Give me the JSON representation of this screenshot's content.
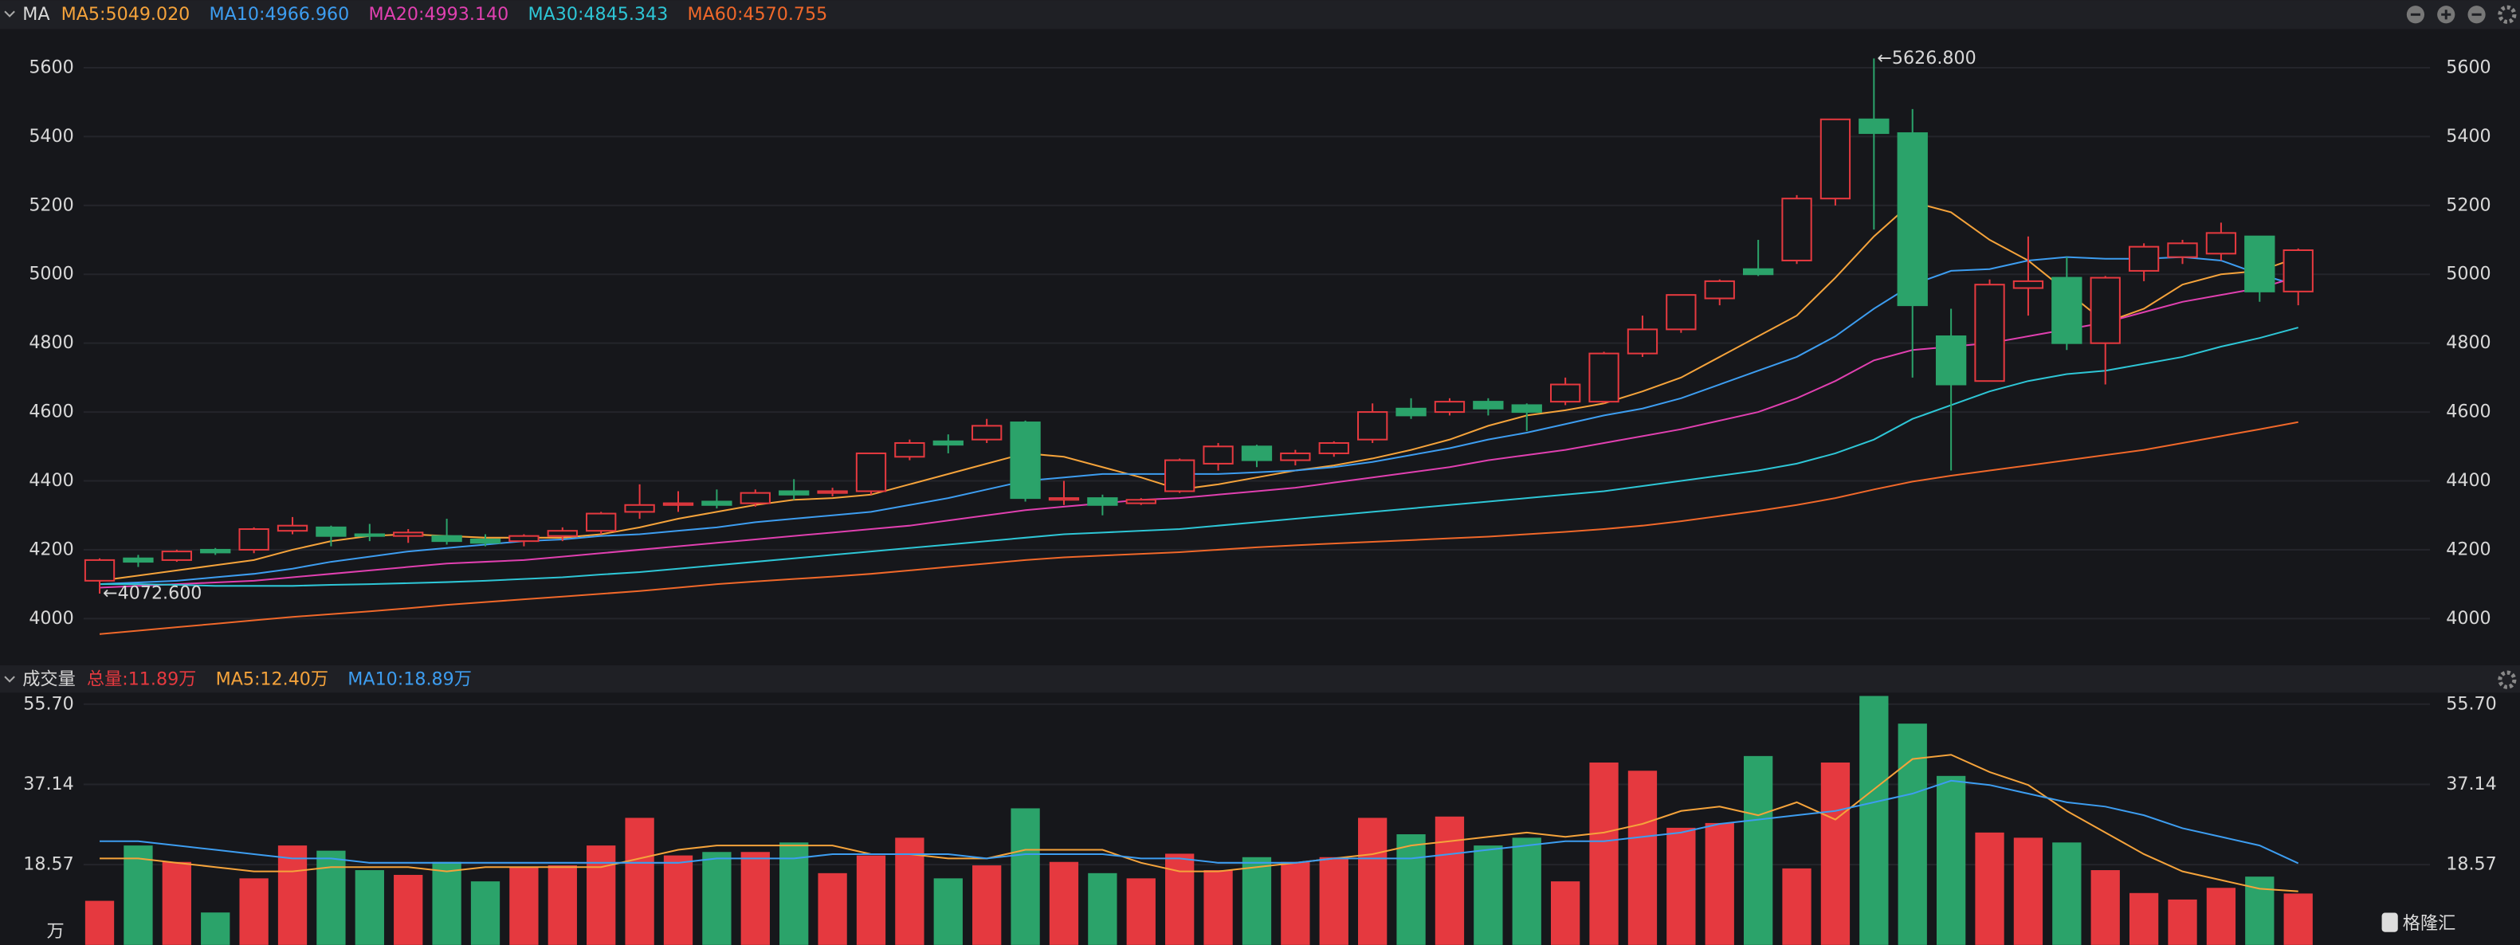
{
  "chart_data": [
    {
      "type": "candlestick",
      "title": "MA",
      "ylim": [
        3883,
        5703
      ],
      "yticks": [
        4000,
        4200,
        4400,
        4600,
        4800,
        5000,
        5200,
        5400,
        5600
      ],
      "grid": true,
      "up_color": "#e5393f",
      "down_color": "#2ba36a",
      "open": [
        4110,
        4175,
        4170,
        4200,
        4200,
        4255,
        4265,
        4245,
        4240,
        4240,
        4230,
        4225,
        4240,
        4255,
        4310,
        4330,
        4340,
        4335,
        4370,
        4365,
        4370,
        4470,
        4515,
        4520,
        4570,
        4345,
        4350,
        4335,
        4370,
        4450,
        4500,
        4460,
        4480,
        4520,
        4610,
        4600,
        4630,
        4620,
        4630,
        4630,
        4770,
        4840,
        4930,
        5015,
        5040,
        5220,
        5450,
        5410,
        4820,
        4690,
        4960,
        4990,
        4800,
        5010,
        5050,
        5060,
        5110,
        4950
      ],
      "high": [
        4175,
        4185,
        4200,
        4205,
        4265,
        4295,
        4270,
        4275,
        4260,
        4290,
        4245,
        4245,
        4265,
        4310,
        4390,
        4370,
        4375,
        4375,
        4405,
        4380,
        4480,
        4520,
        4535,
        4580,
        4575,
        4400,
        4360,
        4350,
        4465,
        4510,
        4505,
        4490,
        4515,
        4625,
        4640,
        4640,
        4640,
        4625,
        4700,
        4775,
        4880,
        4940,
        4985,
        5100,
        5230,
        5450,
        5626.8,
        5480,
        4900,
        4985,
        5110,
        5050,
        4995,
        5090,
        5100,
        5150,
        5110,
        5075
      ],
      "low": [
        4072.6,
        4150,
        4165,
        4185,
        4190,
        4245,
        4210,
        4225,
        4220,
        4215,
        4210,
        4210,
        4225,
        4245,
        4290,
        4310,
        4320,
        4325,
        4345,
        4355,
        4360,
        4460,
        4480,
        4510,
        4340,
        4330,
        4300,
        4330,
        4365,
        4430,
        4440,
        4445,
        4470,
        4510,
        4580,
        4590,
        4590,
        4545,
        4620,
        4625,
        4760,
        4830,
        4910,
        4995,
        5030,
        5200,
        5130,
        4700,
        4430,
        4690,
        4880,
        4780,
        4680,
        4980,
        5030,
        5040,
        4920,
        4910
      ],
      "close": [
        4170,
        4165,
        4195,
        4192,
        4260,
        4270,
        4240,
        4240,
        4250,
        4225,
        4220,
        4240,
        4255,
        4305,
        4330,
        4335,
        4330,
        4365,
        4360,
        4370,
        4480,
        4510,
        4505,
        4560,
        4350,
        4350,
        4330,
        4345,
        4460,
        4500,
        4460,
        4480,
        4510,
        4600,
        4590,
        4630,
        4610,
        4600,
        4680,
        4770,
        4840,
        4940,
        4980,
        5000,
        5220,
        5450,
        5410,
        4910,
        4680,
        4970,
        4980,
        4800,
        4990,
        5080,
        5090,
        5120,
        4950,
        5070
      ],
      "annotations": [
        {
          "text": "←5626.800",
          "value": 5626.8
        },
        {
          "text": "←4072.600",
          "value": 4072.6
        }
      ],
      "series": [
        {
          "name": "MA5:5049.020",
          "color": "#f5a33b",
          "values": [
            4110,
            4125,
            4140,
            4155,
            4170,
            4200,
            4225,
            4240,
            4245,
            4240,
            4235,
            4235,
            4235,
            4245,
            4265,
            4290,
            4310,
            4330,
            4345,
            4350,
            4360,
            4390,
            4420,
            4450,
            4480,
            4470,
            4440,
            4410,
            4375,
            4390,
            4410,
            4430,
            4445,
            4465,
            4490,
            4520,
            4560,
            4590,
            4605,
            4625,
            4660,
            4700,
            4760,
            4820,
            4880,
            4990,
            5110,
            5210,
            5180,
            5100,
            5040,
            4950,
            4860,
            4900,
            4970,
            5000,
            5010,
            5049.02
          ]
        },
        {
          "name": "MA10:4966.960",
          "color": "#3d9df0",
          "values": [
            4100,
            4105,
            4110,
            4120,
            4130,
            4145,
            4165,
            4180,
            4195,
            4205,
            4215,
            4225,
            4230,
            4240,
            4245,
            4255,
            4265,
            4280,
            4290,
            4300,
            4310,
            4330,
            4350,
            4375,
            4400,
            4410,
            4420,
            4420,
            4420,
            4420,
            4425,
            4430,
            4440,
            4455,
            4475,
            4495,
            4520,
            4540,
            4565,
            4590,
            4610,
            4640,
            4680,
            4720,
            4760,
            4820,
            4900,
            4970,
            5010,
            5015,
            5040,
            5050,
            5045,
            5045,
            5050,
            5040,
            5000,
            4966.96
          ]
        },
        {
          "name": "MA20:4993.140",
          "color": "#e040b0",
          "values": [
            4090,
            4095,
            4100,
            4105,
            4110,
            4120,
            4130,
            4140,
            4150,
            4160,
            4165,
            4170,
            4180,
            4190,
            4200,
            4210,
            4220,
            4230,
            4240,
            4250,
            4260,
            4270,
            4285,
            4300,
            4315,
            4325,
            4335,
            4345,
            4350,
            4360,
            4370,
            4380,
            4395,
            4410,
            4425,
            4440,
            4460,
            4475,
            4490,
            4510,
            4530,
            4550,
            4575,
            4600,
            4640,
            4690,
            4750,
            4780,
            4790,
            4800,
            4820,
            4840,
            4860,
            4890,
            4920,
            4940,
            4960,
            4993.14
          ]
        },
        {
          "name": "MA30:4845.343",
          "color": "#2ec6d6",
          "values": [
            4100,
            4100,
            4098,
            4095,
            4095,
            4095,
            4098,
            4100,
            4103,
            4106,
            4110,
            4115,
            4120,
            4128,
            4135,
            4145,
            4155,
            4165,
            4175,
            4185,
            4195,
            4205,
            4215,
            4225,
            4235,
            4245,
            4250,
            4255,
            4260,
            4270,
            4280,
            4290,
            4300,
            4310,
            4320,
            4330,
            4340,
            4350,
            4360,
            4370,
            4385,
            4400,
            4415,
            4430,
            4450,
            4480,
            4520,
            4580,
            4620,
            4660,
            4690,
            4710,
            4720,
            4740,
            4760,
            4790,
            4815,
            4845.343
          ]
        },
        {
          "name": "MA60:4570.755",
          "color": "#f0682a",
          "values": [
            3955,
            3965,
            3975,
            3985,
            3995,
            4005,
            4013,
            4021,
            4030,
            4040,
            4048,
            4056,
            4064,
            4072,
            4080,
            4090,
            4100,
            4108,
            4115,
            4122,
            4130,
            4140,
            4150,
            4160,
            4170,
            4178,
            4183,
            4188,
            4193,
            4200,
            4207,
            4213,
            4218,
            4223,
            4228,
            4233,
            4238,
            4245,
            4252,
            4260,
            4270,
            4283,
            4298,
            4313,
            4330,
            4350,
            4375,
            4398,
            4415,
            4430,
            4445,
            4460,
            4475,
            4490,
            4510,
            4530,
            4550,
            4570.755
          ]
        }
      ]
    },
    {
      "type": "bar",
      "title": "成交量",
      "y_unit": "万",
      "ylim": [
        0,
        58
      ],
      "yticks": [
        {
          "value": 18.57,
          "label": "18.57"
        },
        {
          "value": 37.14,
          "label": "37.14"
        },
        {
          "value": 55.7,
          "label": "55.70"
        }
      ],
      "series": [
        {
          "name": "总量:11.89万",
          "color": "#e5393f",
          "values": [
            10.2,
            23,
            19.2,
            7.5,
            15.4,
            23,
            21.8,
            17.3,
            16.2,
            19.2,
            14.7,
            18.1,
            18.4,
            23,
            29.4,
            20.7,
            21.5,
            21.5,
            23.7,
            16.6,
            20.7,
            24.8,
            15.4,
            18.4,
            31.6,
            19.2,
            16.6,
            15.4,
            21.1,
            17.3,
            20.3,
            19.2,
            20.3,
            29.4,
            25.6,
            29.7,
            23,
            24.8,
            14.7,
            42.2,
            40.3,
            27.1,
            28.2,
            43.7,
            17.7,
            42.2,
            57.6,
            51.2,
            39.1,
            26,
            24.8,
            23.7,
            17.3,
            12,
            10.5,
            13.2,
            15.8,
            11.89
          ]
        },
        {
          "name": "MA5:12.40万",
          "type": "line",
          "color": "#f5a33b",
          "values": [
            20,
            20,
            19,
            18,
            17,
            17,
            18,
            18,
            18,
            17,
            18,
            18,
            18,
            18,
            20,
            22,
            23,
            23,
            23,
            23,
            21,
            21,
            20,
            20,
            22,
            22,
            22,
            19,
            17,
            17,
            18,
            19,
            20,
            21,
            23,
            24,
            25,
            26,
            25,
            26,
            28,
            31,
            32,
            30,
            33,
            29,
            36,
            43,
            44,
            40,
            37,
            31,
            26,
            21,
            17,
            15,
            13,
            12.4
          ]
        },
        {
          "name": "MA10:18.89万",
          "type": "line",
          "color": "#3d9df0",
          "values": [
            24,
            24,
            23,
            22,
            21,
            20,
            20,
            19,
            19,
            19,
            19,
            19,
            19,
            19,
            19,
            19,
            20,
            20,
            20,
            21,
            21,
            21,
            21,
            20,
            21,
            21,
            21,
            20,
            20,
            19,
            19,
            19,
            20,
            20,
            20,
            21,
            22,
            23,
            24,
            24,
            25,
            26,
            28,
            29,
            30,
            31,
            33,
            35,
            38,
            37,
            35,
            33,
            32,
            30,
            27,
            25,
            23,
            18.89
          ]
        }
      ]
    }
  ],
  "watermark": "格隆汇"
}
